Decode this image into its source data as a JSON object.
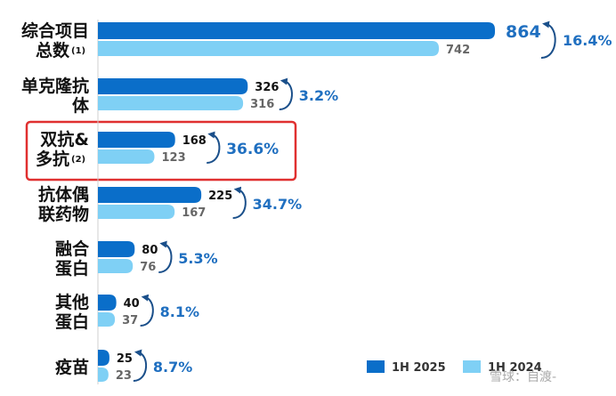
{
  "chart_data": {
    "type": "bar",
    "orientation": "horizontal",
    "categories": [
      {
        "label": [
          "综合项目",
          "总数"
        ],
        "note": "(1)"
      },
      {
        "label": [
          "单克隆抗",
          "体"
        ],
        "note": ""
      },
      {
        "label": [
          "双抗&",
          "多抗"
        ],
        "note": "(2)"
      },
      {
        "label": [
          "抗体偶",
          "联药物"
        ],
        "note": ""
      },
      {
        "label": [
          "融合",
          "蛋白"
        ],
        "note": ""
      },
      {
        "label": [
          "其他",
          "蛋白"
        ],
        "note": ""
      },
      {
        "label": [
          "疫苗"
        ],
        "note": ""
      }
    ],
    "series": [
      {
        "name": "1H 2025",
        "color": "#0a6ec9",
        "values": [
          864,
          326,
          168,
          225,
          80,
          40,
          25
        ]
      },
      {
        "name": "1H 2024",
        "color": "#7fd0f5",
        "values": [
          742,
          316,
          123,
          167,
          76,
          37,
          23
        ]
      }
    ],
    "growth": [
      "16.4%",
      "3.2%",
      "36.6%",
      "34.7%",
      "5.3%",
      "8.1%",
      "8.7%"
    ],
    "highlight_index": 2,
    "highlight_color": "#e03030",
    "arrow_color": "#1a4f8a",
    "xlim": [
      0,
      864
    ],
    "grid": false,
    "legend_position": "bottom-right"
  },
  "watermark": "雪球：自渡-"
}
